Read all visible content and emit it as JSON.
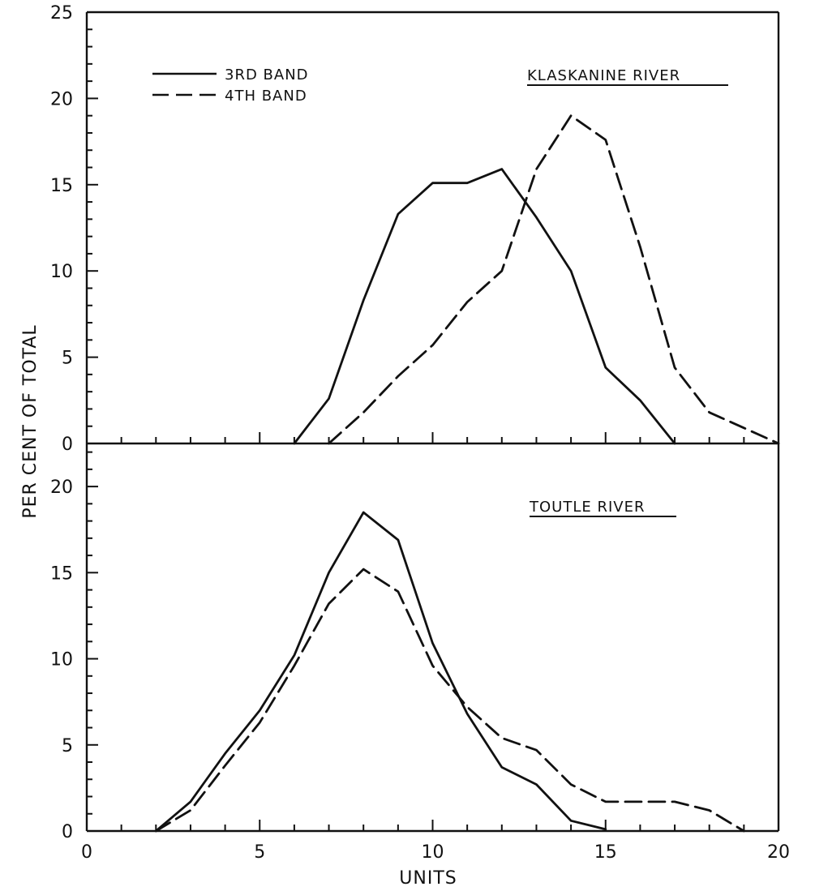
{
  "chart_data": {
    "type": "line",
    "xlabel": "UNITS",
    "ylabel": "PER CENT OF TOTAL",
    "xlim": [
      0,
      20
    ],
    "x_ticks": [
      "0",
      "5",
      "10",
      "15",
      "20"
    ],
    "legend": {
      "placement": "top-left",
      "entries": [
        "3RD BAND",
        "4TH BAND"
      ]
    },
    "panels": [
      {
        "title": "KLASKANINE RIVER",
        "ylim": [
          0,
          25
        ],
        "y_ticks": [
          "0",
          "5",
          "10",
          "15",
          "20",
          "25"
        ],
        "series": [
          {
            "name": "3RD BAND",
            "style": "solid",
            "x": [
              6,
              7,
              8,
              9,
              10,
              11,
              12,
              13,
              14,
              15,
              16,
              17
            ],
            "y": [
              0,
              2.6,
              8.3,
              13.3,
              15.1,
              15.1,
              15.9,
              13.1,
              10.0,
              4.4,
              2.5,
              0
            ]
          },
          {
            "name": "4TH BAND",
            "style": "dashed",
            "x": [
              7,
              8,
              9,
              10,
              11,
              12,
              13,
              14,
              15,
              16,
              17,
              18,
              19,
              20
            ],
            "y": [
              0,
              1.8,
              3.9,
              5.7,
              8.2,
              10.0,
              15.9,
              19.0,
              17.6,
              11.4,
              4.4,
              1.8,
              0.9,
              0
            ]
          }
        ]
      },
      {
        "title": "TOUTLE RIVER",
        "ylim": [
          0,
          22.5
        ],
        "y_ticks": [
          "0",
          "5",
          "10",
          "15",
          "20"
        ],
        "series": [
          {
            "name": "3RD BAND",
            "style": "solid",
            "x": [
              2,
              3,
              4,
              5,
              6,
              7,
              8,
              9,
              10,
              11,
              12,
              13,
              14,
              15
            ],
            "y": [
              0,
              1.7,
              4.5,
              7.0,
              10.2,
              15.0,
              18.5,
              16.9,
              10.9,
              6.8,
              3.7,
              2.7,
              0.6,
              0.1
            ]
          },
          {
            "name": "4TH BAND",
            "style": "dashed",
            "x": [
              2,
              3,
              4,
              5,
              6,
              7,
              8,
              9,
              10,
              11,
              12,
              13,
              14,
              15,
              16,
              17,
              18,
              19
            ],
            "y": [
              0,
              1.2,
              3.8,
              6.3,
              9.6,
              13.2,
              15.2,
              13.9,
              9.6,
              7.2,
              5.4,
              4.7,
              2.7,
              1.7,
              1.7,
              1.7,
              1.2,
              0
            ]
          }
        ]
      }
    ]
  }
}
